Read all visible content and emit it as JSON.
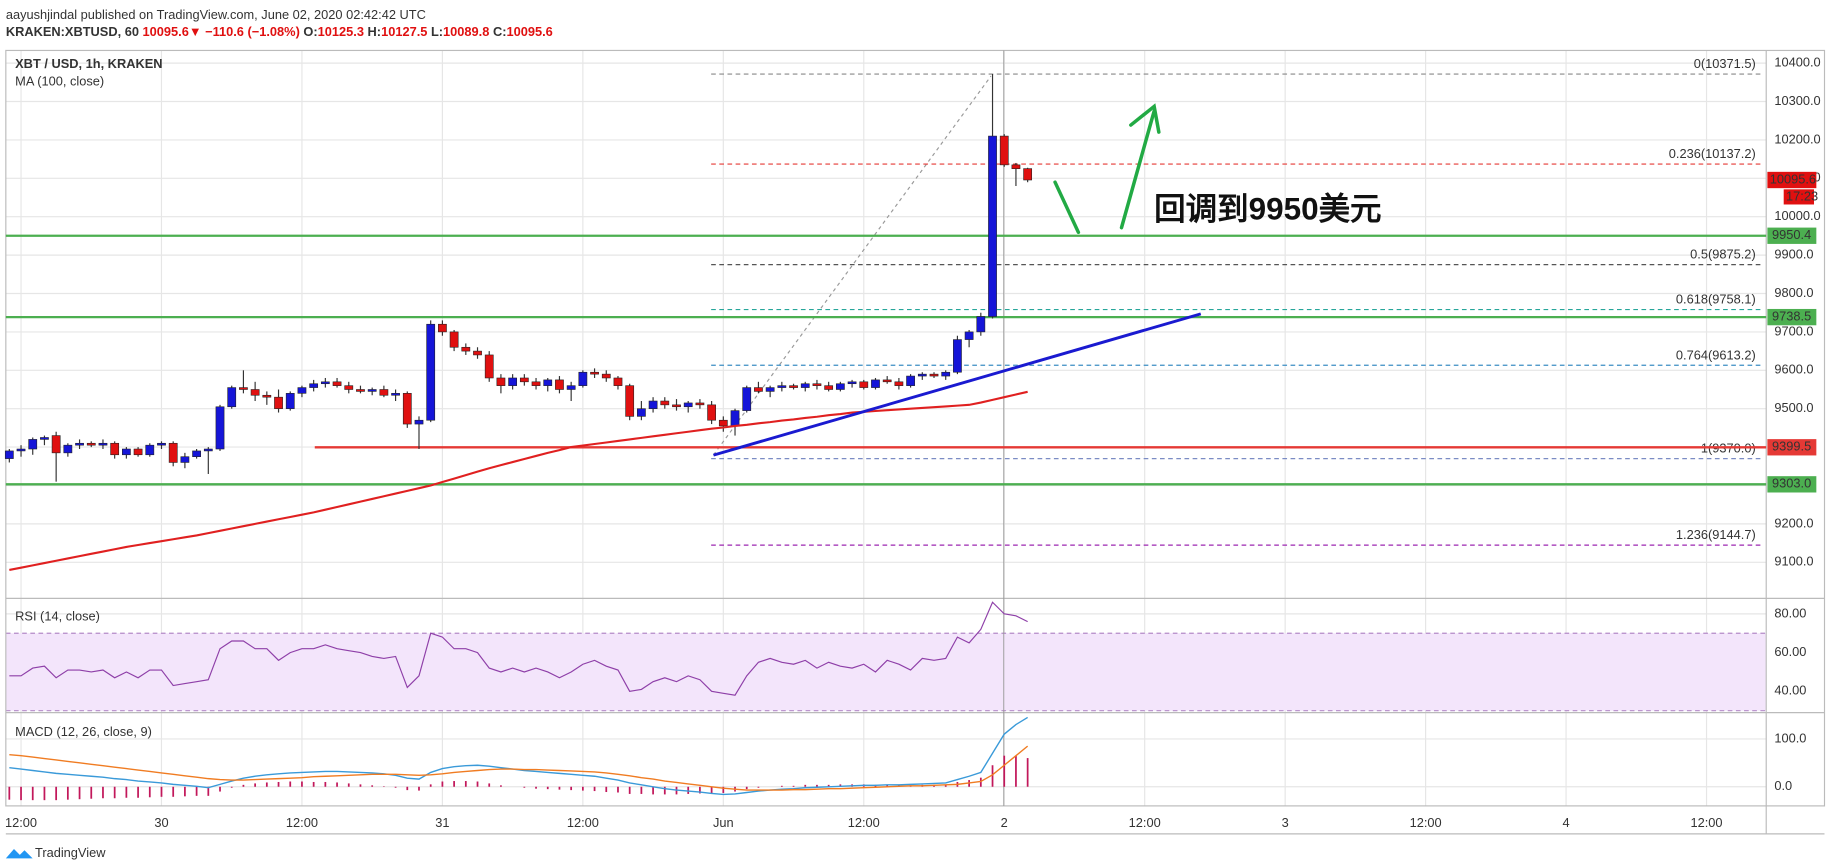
{
  "header": {
    "publisher": "aayushjindal published on TradingView.com, June 02, 2020 02:42:42 UTC",
    "symbol": "KRAKEN:XBTUSD, 60",
    "last": "10095.6",
    "arrow": "▼",
    "change": "−110.6 (−1.08%)",
    "ohlc": [
      {
        "key": "O:",
        "value": "10125.3"
      },
      {
        "key": "H:",
        "value": "10127.5"
      },
      {
        "key": "L:",
        "value": "10089.8"
      },
      {
        "key": "C:",
        "value": "10095.6"
      }
    ]
  },
  "footer": "TradingView",
  "chart_data": {
    "type": "candlestick",
    "title": "XBT / USD, 1h, KRAKEN",
    "x_labels": [
      "12:00",
      "30",
      "12:00",
      "31",
      "12:00",
      "Jun",
      "12:00",
      "2",
      "12:00",
      "3",
      "12:00",
      "4",
      "12:00"
    ],
    "up_color": "#1515d8",
    "down_color": "#e01010",
    "candles": [
      [
        9370,
        9395,
        9360,
        9390
      ],
      [
        9390,
        9405,
        9375,
        9395
      ],
      [
        9395,
        9425,
        9380,
        9420
      ],
      [
        9420,
        9430,
        9405,
        9425
      ],
      [
        9430,
        9440,
        9310,
        9385
      ],
      [
        9385,
        9410,
        9375,
        9405
      ],
      [
        9405,
        9420,
        9395,
        9410
      ],
      [
        9410,
        9415,
        9400,
        9405
      ],
      [
        9405,
        9420,
        9395,
        9410
      ],
      [
        9410,
        9415,
        9370,
        9380
      ],
      [
        9380,
        9400,
        9370,
        9395
      ],
      [
        9395,
        9400,
        9375,
        9380
      ],
      [
        9380,
        9410,
        9375,
        9405
      ],
      [
        9405,
        9415,
        9395,
        9410
      ],
      [
        9410,
        9415,
        9350,
        9360
      ],
      [
        9360,
        9385,
        9345,
        9375
      ],
      [
        9375,
        9395,
        9370,
        9390
      ],
      [
        9390,
        9400,
        9330,
        9395
      ],
      [
        9395,
        9510,
        9390,
        9505
      ],
      [
        9505,
        9560,
        9500,
        9555
      ],
      [
        9555,
        9600,
        9540,
        9550
      ],
      [
        9550,
        9570,
        9520,
        9535
      ],
      [
        9535,
        9545,
        9510,
        9530
      ],
      [
        9530,
        9550,
        9490,
        9500
      ],
      [
        9500,
        9545,
        9495,
        9540
      ],
      [
        9540,
        9560,
        9530,
        9555
      ],
      [
        9555,
        9575,
        9545,
        9565
      ],
      [
        9565,
        9580,
        9555,
        9570
      ],
      [
        9570,
        9580,
        9555,
        9560
      ],
      [
        9560,
        9570,
        9540,
        9550
      ],
      [
        9550,
        9560,
        9540,
        9545
      ],
      [
        9545,
        9555,
        9535,
        9550
      ],
      [
        9550,
        9560,
        9530,
        9535
      ],
      [
        9535,
        9550,
        9520,
        9540
      ],
      [
        9540,
        9545,
        9450,
        9460
      ],
      [
        9460,
        9480,
        9395,
        9470
      ],
      [
        9470,
        9730,
        9465,
        9720
      ],
      [
        9720,
        9730,
        9690,
        9700
      ],
      [
        9700,
        9705,
        9650,
        9660
      ],
      [
        9660,
        9670,
        9640,
        9650
      ],
      [
        9650,
        9660,
        9630,
        9640
      ],
      [
        9640,
        9650,
        9570,
        9580
      ],
      [
        9580,
        9590,
        9540,
        9560
      ],
      [
        9560,
        9590,
        9550,
        9580
      ],
      [
        9580,
        9590,
        9560,
        9570
      ],
      [
        9570,
        9580,
        9550,
        9560
      ],
      [
        9560,
        9580,
        9545,
        9575
      ],
      [
        9575,
        9585,
        9540,
        9550
      ],
      [
        9550,
        9570,
        9520,
        9560
      ],
      [
        9560,
        9600,
        9555,
        9595
      ],
      [
        9595,
        9605,
        9580,
        9590
      ],
      [
        9590,
        9600,
        9570,
        9580
      ],
      [
        9580,
        9585,
        9550,
        9560
      ],
      [
        9560,
        9565,
        9470,
        9480
      ],
      [
        9480,
        9520,
        9470,
        9500
      ],
      [
        9500,
        9530,
        9490,
        9520
      ],
      [
        9520,
        9530,
        9500,
        9510
      ],
      [
        9510,
        9525,
        9495,
        9505
      ],
      [
        9505,
        9520,
        9490,
        9515
      ],
      [
        9515,
        9525,
        9500,
        9510
      ],
      [
        9510,
        9520,
        9460,
        9470
      ],
      [
        9470,
        9480,
        9440,
        9455
      ],
      [
        9455,
        9500,
        9430,
        9495
      ],
      [
        9495,
        9560,
        9490,
        9555
      ],
      [
        9555,
        9570,
        9540,
        9545
      ],
      [
        9545,
        9560,
        9530,
        9555
      ],
      [
        9555,
        9570,
        9545,
        9560
      ],
      [
        9560,
        9565,
        9550,
        9555
      ],
      [
        9555,
        9570,
        9545,
        9565
      ],
      [
        9565,
        9575,
        9550,
        9560
      ],
      [
        9560,
        9570,
        9545,
        9550
      ],
      [
        9550,
        9570,
        9545,
        9565
      ],
      [
        9565,
        9575,
        9555,
        9570
      ],
      [
        9570,
        9575,
        9550,
        9555
      ],
      [
        9555,
        9580,
        9550,
        9575
      ],
      [
        9575,
        9585,
        9565,
        9570
      ],
      [
        9570,
        9580,
        9550,
        9560
      ],
      [
        9560,
        9590,
        9555,
        9585
      ],
      [
        9585,
        9595,
        9575,
        9590
      ],
      [
        9590,
        9595,
        9580,
        9585
      ],
      [
        9585,
        9600,
        9575,
        9595
      ],
      [
        9595,
        9690,
        9590,
        9680
      ],
      [
        9680,
        9705,
        9660,
        9700
      ],
      [
        9700,
        9750,
        9690,
        9740
      ],
      [
        9740,
        10371.5,
        9735,
        10210
      ],
      [
        10210,
        10215,
        10130,
        10135
      ],
      [
        10135,
        10140,
        10080,
        10125
      ],
      [
        10125.3,
        10127.5,
        10089.8,
        10095.6
      ]
    ],
    "ma": {
      "name": "MA (100, close)",
      "color": "#e02020",
      "values": [
        9080,
        9086,
        9092,
        9098,
        9104,
        9110,
        9116,
        9122,
        9128,
        9134,
        9140,
        9145,
        9150,
        9155,
        9160,
        9165,
        9170,
        9176,
        9182,
        9188,
        9194,
        9200,
        9206,
        9212,
        9218,
        9224,
        9230,
        9237,
        9244,
        9251,
        9258,
        9265,
        9272,
        9279,
        9286,
        9293,
        9300,
        9309,
        9318,
        9327,
        9336,
        9345,
        9353,
        9361,
        9369,
        9377,
        9385,
        9392,
        9400,
        9404,
        9408,
        9412,
        9416,
        9420,
        9424,
        9428,
        9432,
        9436,
        9440,
        9444,
        9448,
        9451,
        9455,
        9458,
        9462,
        9465,
        9469,
        9472,
        9476,
        9479,
        9483,
        9486,
        9490,
        9492,
        9494,
        9496,
        9498,
        9500,
        9502,
        9504,
        9506,
        9508,
        9510,
        9516,
        9523,
        9530,
        9537,
        9544
      ]
    },
    "ylim": [
      9006,
      10433
    ],
    "yticks": [
      {
        "value": 10400,
        "label": "10400.0"
      },
      {
        "value": 10300,
        "label": "10300.0"
      },
      {
        "value": 10200,
        "label": "10200.0"
      },
      {
        "value": 10100,
        "label": "10100.0"
      },
      {
        "value": 10000,
        "label": "10000.0"
      },
      {
        "value": 9900,
        "label": "9900.0"
      },
      {
        "value": 9800,
        "label": "9800.0"
      },
      {
        "value": 9700,
        "label": "9700.0"
      },
      {
        "value": 9600,
        "label": "9600.0"
      },
      {
        "value": 9500,
        "label": "9500.0"
      },
      {
        "value": 9400,
        "label": "9400.0"
      },
      {
        "value": 9300,
        "label": "9300.0"
      },
      {
        "value": 9200,
        "label": "9200.0"
      },
      {
        "value": 9100,
        "label": "9100.0"
      }
    ],
    "grid": true,
    "levels": [
      {
        "value": 9950.4,
        "label": "9950.4",
        "color": "#4caf50"
      },
      {
        "value": 9738.5,
        "label": "9738.5",
        "color": "#4caf50"
      },
      {
        "value": 9399.5,
        "label": "9399.5",
        "color": "#e53935"
      },
      {
        "value": 9303.0,
        "label": "9303.0",
        "color": "#4caf50"
      }
    ],
    "fib": [
      {
        "value": 10371.5,
        "label": "0(10371.5)",
        "color": "#888888"
      },
      {
        "value": 10137.2,
        "label": "0.236(10137.2)",
        "color": "#e53935"
      },
      {
        "value": 9875.2,
        "label": "0.5(9875.2)",
        "color": "#555555"
      },
      {
        "value": 9758.1,
        "label": "0.618(9758.1)",
        "color": "#26a69a"
      },
      {
        "value": 9613.2,
        "label": "0.764(9613.2)",
        "color": "#3d8fc4"
      },
      {
        "value": 9370.0,
        "label": "1(9370.0)",
        "color": "#7b8cc4"
      },
      {
        "value": 9144.7,
        "label": "1.236(9144.7)",
        "color": "#9c27b0"
      }
    ],
    "trendline": {
      "values": [
        9379,
        9747
      ],
      "color": "#1a1ad0"
    },
    "annotation": "回调到9950美元",
    "last_price": {
      "value": 10095.6,
      "label": "10095.6",
      "countdown": "17:23"
    },
    "rsi": {
      "name": "RSI (14, close)",
      "color": "#8e3fa8",
      "ylim": [
        29,
        88
      ],
      "band": [
        30,
        70
      ],
      "yticks": [
        {
          "value": 40,
          "label": "40.00"
        },
        {
          "value": 60,
          "label": "60.00"
        },
        {
          "value": 80,
          "label": "80.00"
        }
      ],
      "values": [
        48,
        48,
        52,
        53,
        47,
        51,
        51,
        50,
        51,
        47,
        50,
        47,
        51,
        51,
        43,
        44,
        45,
        46,
        62,
        66,
        66,
        62,
        62,
        56,
        60,
        62,
        62,
        64,
        62,
        61,
        60,
        58,
        57,
        58,
        42,
        48,
        70,
        68,
        62,
        62,
        60,
        52,
        50,
        52,
        50,
        52,
        50,
        47,
        50,
        54,
        56,
        53,
        51,
        40,
        41,
        45,
        47,
        45,
        48,
        46,
        40,
        39,
        38,
        48,
        55,
        57,
        55,
        54,
        56,
        52,
        55,
        53,
        52,
        54,
        50,
        56,
        54,
        51,
        57,
        56,
        57,
        68,
        65,
        72,
        86,
        80,
        79,
        76
      ]
    },
    "macd": {
      "name": "MACD (12, 26, close, 9)",
      "ylim": [
        -40,
        155
      ],
      "yticks": [
        {
          "value": 100,
          "label": "100.0"
        },
        {
          "value": 0,
          "label": "0.0"
        }
      ],
      "macd_color": "#3a9ad9",
      "signal_color": "#f07c22",
      "hist_color": "#c2185b",
      "macd": [
        40,
        37,
        34,
        31,
        28,
        26,
        24,
        22,
        20,
        17,
        15,
        12,
        10,
        8,
        5,
        3,
        1,
        -2,
        5,
        12,
        18,
        22,
        25,
        27,
        29,
        30,
        31,
        32,
        32,
        31,
        30,
        29,
        27,
        24,
        18,
        16,
        30,
        38,
        42,
        44,
        45,
        43,
        40,
        37,
        34,
        32,
        30,
        28,
        26,
        24,
        22,
        18,
        14,
        8,
        4,
        0,
        -4,
        -7,
        -9,
        -11,
        -14,
        -16,
        -15,
        -12,
        -9,
        -7,
        -5,
        -4,
        -2,
        -1,
        0,
        1,
        2,
        3,
        3,
        4,
        4,
        5,
        6,
        7,
        8,
        15,
        22,
        30,
        70,
        110,
        130,
        145
      ],
      "signal": [
        67,
        65,
        62,
        59,
        56,
        53,
        50,
        47,
        44,
        41,
        38,
        35,
        32,
        29,
        26,
        23,
        20,
        17,
        15,
        14,
        14,
        15,
        16,
        17,
        18,
        19,
        21,
        22,
        23,
        24,
        25,
        26,
        26,
        26,
        25,
        24,
        25,
        27,
        30,
        32,
        34,
        36,
        37,
        37,
        36,
        36,
        35,
        34,
        33,
        32,
        31,
        29,
        26,
        23,
        19,
        16,
        12,
        9,
        6,
        3,
        0,
        -3,
        -5,
        -7,
        -7,
        -7,
        -7,
        -6,
        -6,
        -5,
        -4,
        -4,
        -3,
        -2,
        -1,
        0,
        1,
        2,
        2,
        3,
        4,
        5,
        8,
        11,
        25,
        45,
        65,
        85
      ],
      "histogram": [
        -27,
        -28,
        -28,
        -28,
        -28,
        -27,
        -26,
        -25,
        -24,
        -24,
        -23,
        -23,
        -22,
        -21,
        -21,
        -20,
        -19,
        -19,
        -10,
        -2,
        4,
        7,
        9,
        10,
        11,
        11,
        10,
        10,
        9,
        7,
        5,
        3,
        1,
        -2,
        -7,
        -8,
        5,
        11,
        12,
        12,
        11,
        7,
        3,
        0,
        -2,
        -4,
        -5,
        -6,
        -7,
        -8,
        -9,
        -11,
        -12,
        -15,
        -15,
        -16,
        -16,
        -16,
        -15,
        -14,
        -14,
        -13,
        -10,
        -5,
        -2,
        0,
        2,
        2,
        4,
        4,
        4,
        5,
        5,
        5,
        4,
        4,
        3,
        3,
        4,
        4,
        4,
        10,
        14,
        19,
        45,
        65,
        65,
        60
      ]
    }
  }
}
